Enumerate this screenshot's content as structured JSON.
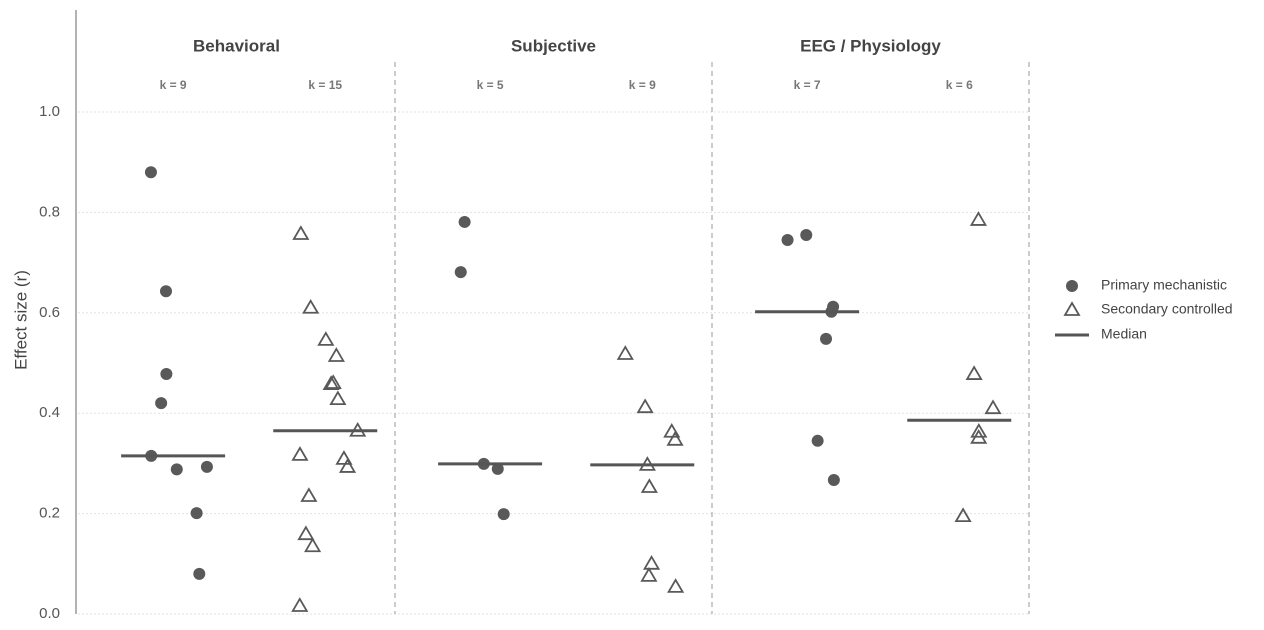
{
  "chart_data": {
    "type": "strip",
    "y_label": "Effect size (r)",
    "ylim": [
      0,
      1.2
    ],
    "yticks": [
      {
        "value": 0,
        "label": "0.0"
      },
      0.2,
      0.4,
      0.6,
      0.8,
      {
        "value": 1,
        "label": "1.0"
      }
    ],
    "grid": true,
    "legend_position": "right",
    "series": [
      {
        "name": "Primary mechanistic",
        "marker": "circle",
        "color": "#595959"
      },
      {
        "name": "Secondary controlled",
        "marker": "triangle",
        "color": "#595959"
      }
    ],
    "median_label": "Median",
    "median_color": "#555555",
    "panels": [
      {
        "title": "Behavioral",
        "groups": [
          {
            "k_label": "k = 9",
            "values": [
              0.88,
              0.643,
              0.478,
              0.42,
              0.315,
              0.288,
              0.293,
              0.201,
              0.08
            ],
            "median": 0.315
          },
          {
            "k_label": "k = 15",
            "values": [
              0.757,
              0.61,
              0.546,
              0.514,
              0.46,
              0.458,
              0.428,
              0.365,
              0.309,
              0.293,
              0.317,
              0.235,
              0.159,
              0.135,
              0.016
            ],
            "median": 0.365
          }
        ]
      },
      {
        "title": "Subjective",
        "groups": [
          {
            "k_label": "k = 5",
            "values": [
              0.781,
              0.681,
              0.299,
              0.289,
              0.199
            ],
            "median": 0.299
          },
          {
            "k_label": "k = 9",
            "values": [
              0.518,
              0.412,
              0.363,
              0.347,
              0.297,
              0.253,
              0.1,
              0.076,
              0.054
            ],
            "median": 0.297
          }
        ]
      },
      {
        "title": "EEG / Physiology",
        "groups": [
          {
            "k_label": "k = 7",
            "values": [
              0.755,
              0.745,
              0.612,
              0.602,
              0.548,
              0.345,
              0.267
            ],
            "median": 0.602
          },
          {
            "k_label": "k = 6",
            "values": [
              0.785,
              0.478,
              0.41,
              0.363,
              0.351,
              0.195
            ],
            "median": 0.386
          }
        ]
      }
    ]
  }
}
